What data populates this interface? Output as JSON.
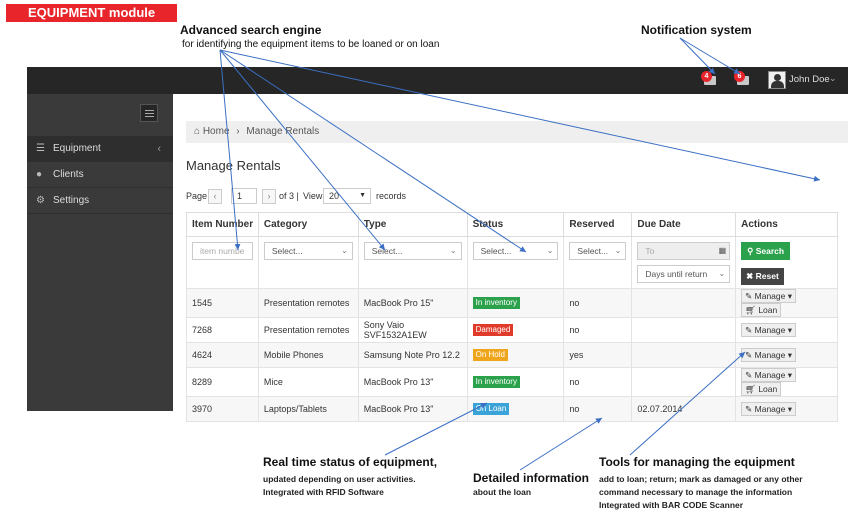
{
  "module_tag": "EQUIPMENT module",
  "annotations": {
    "search_title": "Advanced search engine",
    "search_sub": "for identifying the equipment items to be loaned or on loan",
    "notif_title": "Notification system",
    "status_title": "Real time status of equipment,",
    "status_sub1": "updated depending on user activities.",
    "status_sub2": "Integrated with RFID Software",
    "detail_title": "Detailed information",
    "detail_sub": "about the loan",
    "tools_title": "Tools for managing the equipment",
    "tools_sub1": "add to loan; return; mark as damaged or any other",
    "tools_sub2": "command necessary to manage the information",
    "tools_sub3": "Integrated with BAR CODE Scanner"
  },
  "topbar": {
    "badge_messages": "4",
    "badge_mail": "6",
    "user_name": "John Doe"
  },
  "sidebar": {
    "items": [
      {
        "label": "Equipment",
        "icon": "list-icon"
      },
      {
        "label": "Clients",
        "icon": "user-icon"
      },
      {
        "label": "Settings",
        "icon": "gears-icon"
      }
    ]
  },
  "breadcrumb": {
    "home": "Home",
    "sep": "›",
    "current": "Manage Rentals"
  },
  "page_title": "Manage Rentals",
  "pager": {
    "page_label": "Page",
    "prev": "‹",
    "page_value": "1",
    "next": "›",
    "of_text": "of 3 |",
    "view_label": "View",
    "view_value": "20",
    "records_label": "records"
  },
  "table": {
    "headers": [
      "Item Number",
      "Category",
      "Type",
      "Status",
      "Reserved",
      "Due Date",
      "Actions"
    ],
    "filters": {
      "item_placeholder": "item numbe",
      "category": "Select...",
      "type": "Select...",
      "status": "Select...",
      "reserved": "Select...",
      "date_placeholder": "To",
      "days": "Days until return",
      "search": "Search",
      "reset": "Reset"
    },
    "rows": [
      {
        "item": "1545",
        "category": "Presentation remotes",
        "type": "MacBook Pro 15\"",
        "status": "In inventory",
        "status_color": "#2aa14a",
        "reserved": "no",
        "due": "",
        "manage": "Manage",
        "loan": "Loan"
      },
      {
        "item": "7268",
        "category": "Presentation remotes",
        "type": "Sony Vaio SVF1532A1EW",
        "status": "Damaged",
        "status_color": "#e03b2a",
        "reserved": "no",
        "due": "",
        "manage": "Manage",
        "loan": ""
      },
      {
        "item": "4624",
        "category": "Mobile Phones",
        "type": "Samsung Note Pro 12.2",
        "status": "On Hold",
        "status_color": "#f0a61c",
        "reserved": "yes",
        "due": "",
        "manage": "Manage",
        "loan": ""
      },
      {
        "item": "8289",
        "category": "Mice",
        "type": "MacBook Pro 13\"",
        "status": "In inventory",
        "status_color": "#2aa14a",
        "reserved": "no",
        "due": "",
        "manage": "Manage",
        "loan": "Loan"
      },
      {
        "item": "3970",
        "category": "Laptops/Tablets",
        "type": "MacBook Pro 13\"",
        "status": "On Loan",
        "status_color": "#3aa3d8",
        "reserved": "no",
        "due": "02.07.2014",
        "manage": "Manage",
        "loan": ""
      }
    ]
  }
}
